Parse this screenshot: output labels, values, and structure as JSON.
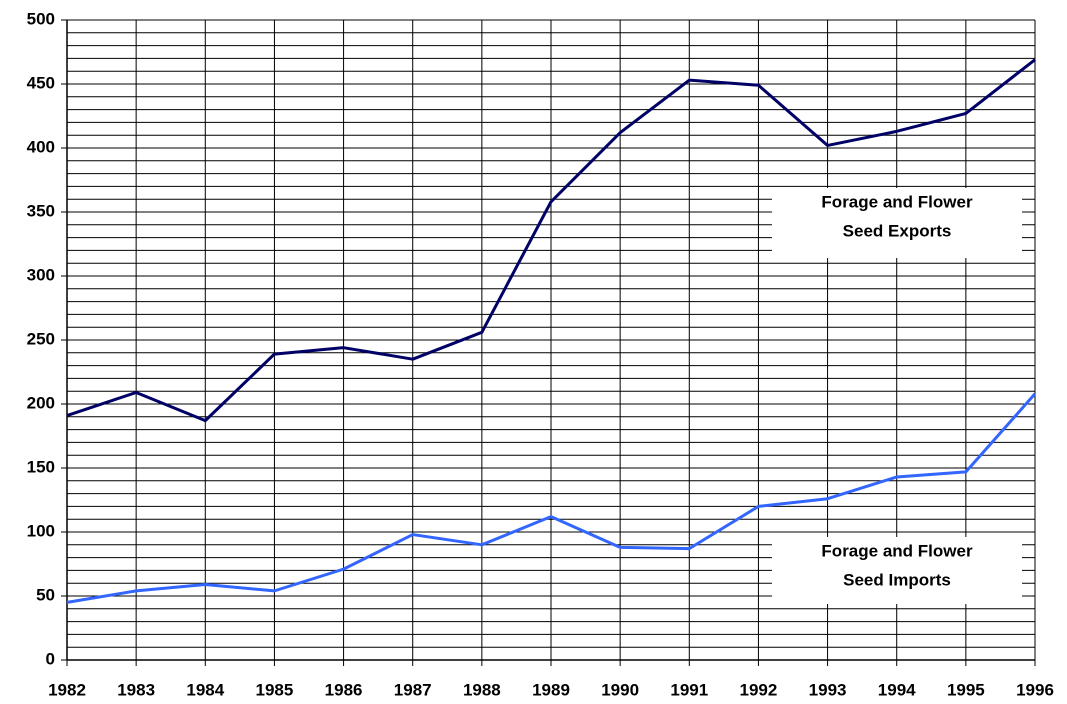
{
  "chart_data": {
    "type": "line",
    "x": [
      1982,
      1983,
      1984,
      1985,
      1986,
      1987,
      1988,
      1989,
      1990,
      1991,
      1992,
      1993,
      1994,
      1995,
      1996
    ],
    "xlim": [
      1982,
      1996
    ],
    "xticks": [
      1982,
      1983,
      1984,
      1985,
      1986,
      1987,
      1988,
      1989,
      1990,
      1991,
      1992,
      1993,
      1994,
      1995,
      1996
    ],
    "ylim": [
      0,
      500
    ],
    "yticks": [
      0,
      50,
      100,
      150,
      200,
      250,
      300,
      350,
      400,
      450,
      500
    ],
    "yminorticks": [
      10,
      20,
      30,
      40,
      60,
      70,
      80,
      90,
      110,
      120,
      130,
      140,
      160,
      170,
      180,
      190,
      210,
      220,
      230,
      240,
      260,
      270,
      280,
      290,
      310,
      320,
      330,
      340,
      360,
      370,
      380,
      390,
      410,
      420,
      430,
      440,
      460,
      470,
      480,
      490
    ],
    "grid": true,
    "series": [
      {
        "color": "#000066",
        "values": [
          191,
          209,
          187,
          239,
          244,
          235,
          256,
          358,
          412,
          453,
          449,
          402,
          413,
          427,
          469
        ]
      },
      {
        "color": "#3366ff",
        "values": [
          45,
          54,
          59,
          54,
          71,
          98,
          90,
          112,
          88,
          87,
          120,
          126,
          143,
          147,
          208
        ]
      }
    ],
    "annotations": [
      {
        "lines": [
          "Forage and Flower",
          "Seed Exports"
        ]
      },
      {
        "lines": [
          "Forage and Flower",
          "Seed Imports"
        ]
      }
    ]
  }
}
